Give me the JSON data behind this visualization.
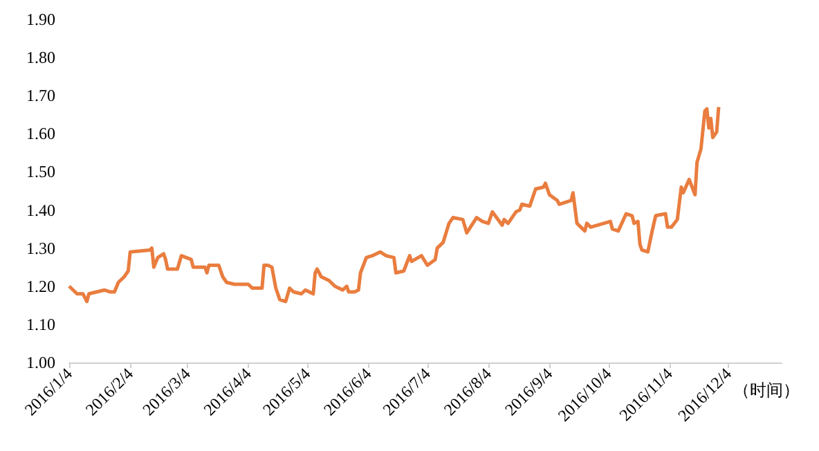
{
  "chart_data": {
    "type": "line",
    "xlabel": "（时间）",
    "x": [
      "2016-01-04",
      "2016-01-06",
      "2016-01-08",
      "2016-01-11",
      "2016-01-13",
      "2016-01-14",
      "2016-01-18",
      "2016-01-22",
      "2016-01-25",
      "2016-01-27",
      "2016-01-29",
      "2016-02-01",
      "2016-02-03",
      "2016-02-04",
      "2016-02-14",
      "2016-02-15",
      "2016-02-16",
      "2016-02-18",
      "2016-02-21",
      "2016-02-22",
      "2016-02-23",
      "2016-02-28",
      "2016-03-01",
      "2016-03-06",
      "2016-03-07",
      "2016-03-13",
      "2016-03-14",
      "2016-03-15",
      "2016-03-20",
      "2016-03-22",
      "2016-03-24",
      "2016-03-28",
      "2016-04-04",
      "2016-04-06",
      "2016-04-11",
      "2016-04-12",
      "2016-04-14",
      "2016-04-16",
      "2016-04-18",
      "2016-04-20",
      "2016-04-23",
      "2016-04-25",
      "2016-04-27",
      "2016-05-01",
      "2016-05-03",
      "2016-05-07",
      "2016-05-08",
      "2016-05-09",
      "2016-05-11",
      "2016-05-15",
      "2016-05-18",
      "2016-05-22",
      "2016-05-24",
      "2016-05-25",
      "2016-05-28",
      "2016-05-30",
      "2016-05-31",
      "2016-06-03",
      "2016-06-06",
      "2016-06-10",
      "2016-06-13",
      "2016-06-17",
      "2016-06-18",
      "2016-06-22",
      "2016-06-25",
      "2016-06-26",
      "2016-07-01",
      "2016-07-04",
      "2016-07-08",
      "2016-07-09",
      "2016-07-12",
      "2016-07-15",
      "2016-07-17",
      "2016-07-22",
      "2016-07-24",
      "2016-07-29",
      "2016-08-01",
      "2016-08-04",
      "2016-08-06",
      "2016-08-11",
      "2016-08-12",
      "2016-08-14",
      "2016-08-18",
      "2016-08-20",
      "2016-08-21",
      "2016-08-25",
      "2016-08-28",
      "2016-09-01",
      "2016-09-02",
      "2016-09-04",
      "2016-09-08",
      "2016-09-09",
      "2016-09-15",
      "2016-09-16",
      "2016-09-18",
      "2016-09-22",
      "2016-09-23",
      "2016-09-25",
      "2016-10-05",
      "2016-10-06",
      "2016-10-09",
      "2016-10-13",
      "2016-10-16",
      "2016-10-17",
      "2016-10-19",
      "2016-10-20",
      "2016-10-21",
      "2016-10-24",
      "2016-10-26",
      "2016-10-28",
      "2016-11-02",
      "2016-11-03",
      "2016-11-05",
      "2016-11-08",
      "2016-11-10",
      "2016-11-11",
      "2016-11-14",
      "2016-11-17",
      "2016-11-18",
      "2016-11-20",
      "2016-11-22",
      "2016-11-23",
      "2016-11-24",
      "2016-11-25",
      "2016-11-26",
      "2016-11-28",
      "2016-11-29"
    ],
    "series": [
      {
        "color": "#e97d3f",
        "values": [
          1.2,
          1.19,
          1.18,
          1.18,
          1.16,
          1.18,
          1.185,
          1.19,
          1.185,
          1.185,
          1.21,
          1.225,
          1.24,
          1.29,
          1.295,
          1.3,
          1.25,
          1.275,
          1.285,
          1.27,
          1.245,
          1.245,
          1.28,
          1.27,
          1.25,
          1.25,
          1.235,
          1.255,
          1.255,
          1.225,
          1.21,
          1.205,
          1.205,
          1.195,
          1.195,
          1.255,
          1.255,
          1.25,
          1.195,
          1.165,
          1.16,
          1.195,
          1.185,
          1.18,
          1.19,
          1.18,
          1.235,
          1.245,
          1.225,
          1.215,
          1.2,
          1.19,
          1.2,
          1.185,
          1.185,
          1.19,
          1.235,
          1.275,
          1.28,
          1.29,
          1.28,
          1.275,
          1.235,
          1.24,
          1.28,
          1.265,
          1.28,
          1.255,
          1.27,
          1.3,
          1.315,
          1.365,
          1.38,
          1.375,
          1.34,
          1.38,
          1.37,
          1.365,
          1.395,
          1.36,
          1.375,
          1.365,
          1.395,
          1.4,
          1.415,
          1.41,
          1.455,
          1.46,
          1.47,
          1.44,
          1.425,
          1.415,
          1.425,
          1.445,
          1.365,
          1.345,
          1.365,
          1.355,
          1.37,
          1.35,
          1.345,
          1.39,
          1.385,
          1.365,
          1.37,
          1.31,
          1.295,
          1.29,
          1.34,
          1.385,
          1.39,
          1.355,
          1.355,
          1.375,
          1.46,
          1.445,
          1.48,
          1.44,
          1.525,
          1.56,
          1.66,
          1.665,
          1.615,
          1.64,
          1.59,
          1.605,
          1.67
        ]
      }
    ],
    "xlim": [
      "2016-01-04",
      "2016-12-31"
    ],
    "xticks": [
      {
        "value": "2016-01-04",
        "label": "2016/1/4"
      },
      {
        "value": "2016-02-04",
        "label": "2016/2/4"
      },
      {
        "value": "2016-03-04",
        "label": "2016/3/4"
      },
      {
        "value": "2016-04-04",
        "label": "2016/4/4"
      },
      {
        "value": "2016-05-04",
        "label": "2016/5/4"
      },
      {
        "value": "2016-06-04",
        "label": "2016/6/4"
      },
      {
        "value": "2016-07-04",
        "label": "2016/7/4"
      },
      {
        "value": "2016-08-04",
        "label": "2016/8/4"
      },
      {
        "value": "2016-09-04",
        "label": "2016/9/4"
      },
      {
        "value": "2016-10-04",
        "label": "2016/10/4"
      },
      {
        "value": "2016-11-04",
        "label": "2016/11/4"
      },
      {
        "value": "2016-12-04",
        "label": "2016/12/4"
      }
    ],
    "ylim": [
      1.0,
      1.9
    ],
    "yticks": [
      {
        "value": 1.0,
        "label": "1.00"
      },
      {
        "value": 1.1,
        "label": "1.10"
      },
      {
        "value": 1.2,
        "label": "1.20"
      },
      {
        "value": 1.3,
        "label": "1.30"
      },
      {
        "value": 1.4,
        "label": "1.40"
      },
      {
        "value": 1.5,
        "label": "1.50"
      },
      {
        "value": 1.6,
        "label": "1.60"
      },
      {
        "value": 1.7,
        "label": "1.70"
      },
      {
        "value": 1.8,
        "label": "1.80"
      },
      {
        "value": 1.9,
        "label": "1.90"
      }
    ],
    "grid": false,
    "marker": "none",
    "line_style": "solid"
  }
}
